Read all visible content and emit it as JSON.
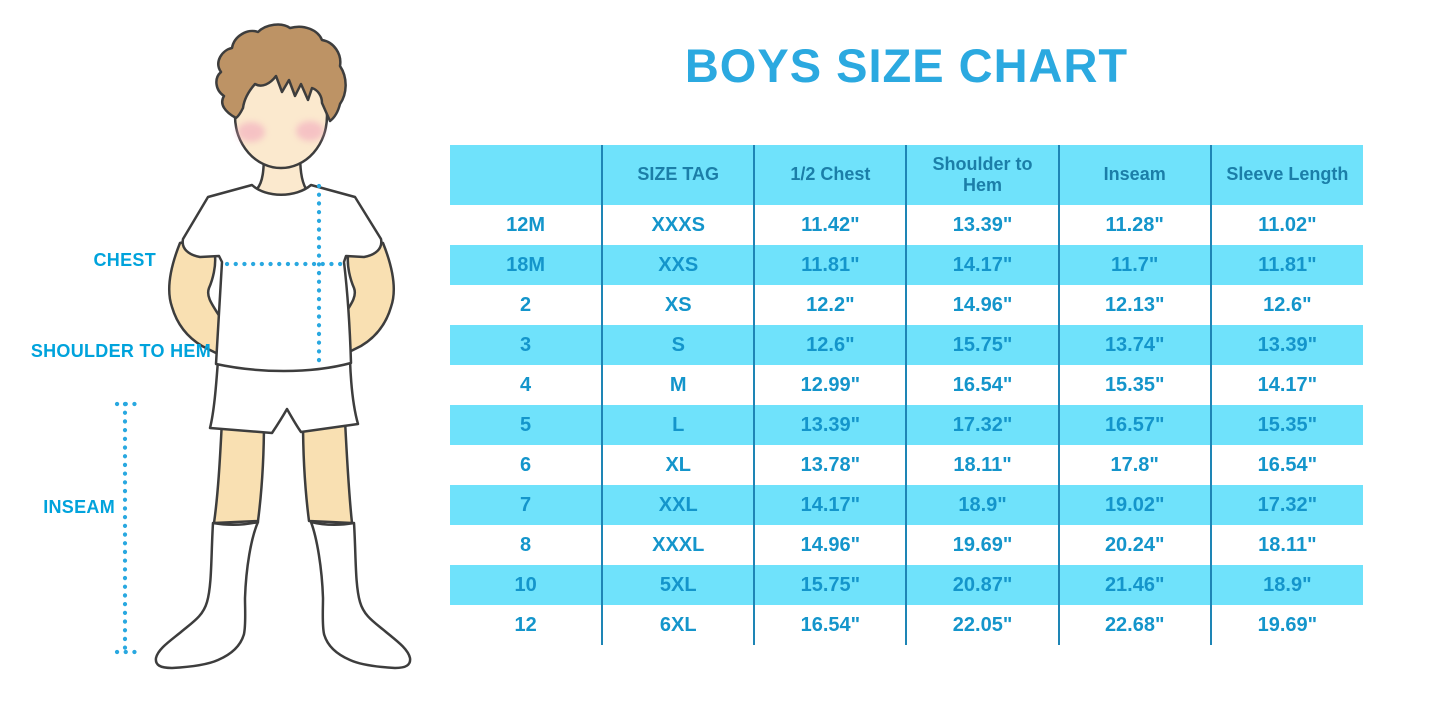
{
  "header": {
    "title": "BOYS SIZE CHART"
  },
  "figure": {
    "labels": {
      "chest": "CHEST",
      "shoulder_to_hem": "SHOULDER TO HEM",
      "inseam": "INSEAM"
    }
  },
  "chart_data": {
    "type": "table",
    "title": "BOYS SIZE CHART",
    "columns": [
      "",
      "SIZE TAG",
      "1/2 Chest",
      "Shoulder to Hem",
      "Inseam",
      "Sleeve Length"
    ],
    "rows": [
      [
        "12M",
        "XXXS",
        "11.42\"",
        "13.39\"",
        "11.28\"",
        "11.02\""
      ],
      [
        "18M",
        "XXS",
        "11.81\"",
        "14.17\"",
        "11.7\"",
        "11.81\""
      ],
      [
        "2",
        "XS",
        "12.2\"",
        "14.96\"",
        "12.13\"",
        "12.6\""
      ],
      [
        "3",
        "S",
        "12.6\"",
        "15.75\"",
        "13.74\"",
        "13.39\""
      ],
      [
        "4",
        "M",
        "12.99\"",
        "16.54\"",
        "15.35\"",
        "14.17\""
      ],
      [
        "5",
        "L",
        "13.39\"",
        "17.32\"",
        "16.57\"",
        "15.35\""
      ],
      [
        "6",
        "XL",
        "13.78\"",
        "18.11\"",
        "17.8\"",
        "16.54\""
      ],
      [
        "7",
        "XXL",
        "14.17\"",
        "18.9\"",
        "19.02\"",
        "17.32\""
      ],
      [
        "8",
        "XXXL",
        "14.96\"",
        "19.69\"",
        "20.24\"",
        "18.11\""
      ],
      [
        "10",
        "5XL",
        "15.75\"",
        "20.87\"",
        "21.46\"",
        "18.9\""
      ],
      [
        "12",
        "6XL",
        "16.54\"",
        "22.05\"",
        "22.68\"",
        "19.69\""
      ]
    ],
    "layout": {
      "alternating_row_fill": "every second body row highlighted",
      "grid": "vertical column dividers only, no horizontal borders",
      "header_fill": "#6FE2FB"
    }
  },
  "colors": {
    "title_blue": "#2BA9E0",
    "label_blue": "#00A3DC",
    "table_fill_cyan": "#6FE2FB",
    "table_header_text": "#1B7EA8",
    "table_body_text": "#1495CB",
    "column_divider": "#1E85B5",
    "measure_dots": "#29A8E0",
    "skin": "#F9E0B2",
    "face_skin": "#FBE9CE",
    "hair_brown": "#BD9365",
    "blush_pink": "#F2A9BE",
    "illustration_outline": "#3d3d3d"
  }
}
